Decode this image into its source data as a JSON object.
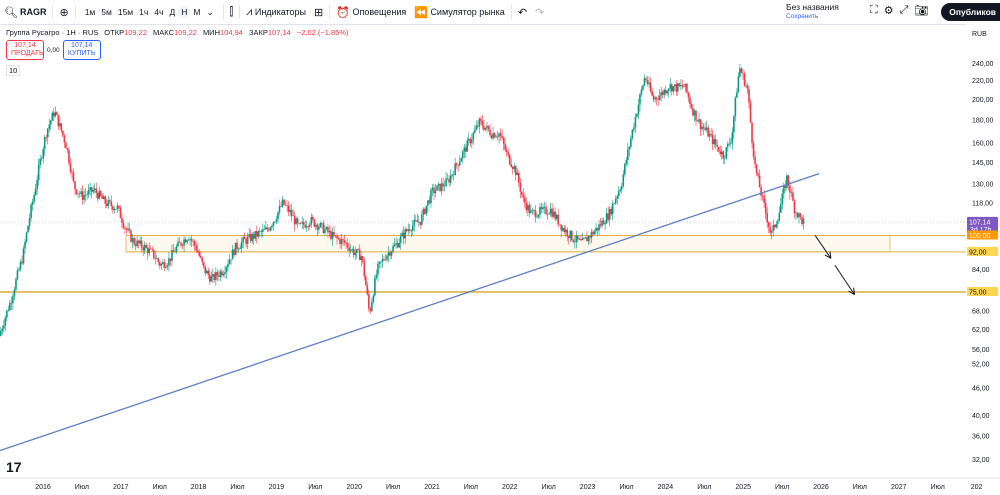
{
  "toolbar": {
    "symbol": "RAGR",
    "intervals": [
      "1м",
      "5м",
      "15м",
      "1ч",
      "4ч",
      "Д",
      "Н",
      "М"
    ],
    "active_interval": "Н",
    "indicators_label": "Индикаторы",
    "alerts_label": "Оповещения",
    "replay_label": "Симулятор рынка",
    "layout_name": "Без названия",
    "layout_status": "Сохранить",
    "publish_label": "Опубликов"
  },
  "legend": {
    "title": "Группа Русагро · 1Н · RUS",
    "open_label": "ОТКР",
    "open": "109,22",
    "high_label": "МАКС",
    "high": "109,22",
    "low_label": "МИН",
    "low": "104,94",
    "close_label": "ЗАКР",
    "close": "107,14",
    "change": "−2,02 (−1,85%)"
  },
  "trade": {
    "sell_price": "107,14",
    "sell_label": "ПРОДАТЬ",
    "spread": "0,00",
    "buy_price": "107,14",
    "buy_label": "КУПИТЬ"
  },
  "volume_label": "10",
  "colors": {
    "up": "#089981",
    "down": "#f23645",
    "trend": "#5b7fc7",
    "level": "#e0b34a"
  },
  "chart_data": {
    "type": "candlestick",
    "currency": "RUB",
    "y_scale": "log",
    "ylim": [
      30,
      265
    ],
    "y_ticks": [
      32,
      36,
      40,
      46,
      52,
      56,
      62,
      68,
      76,
      84,
      92,
      100,
      108,
      118,
      130,
      145,
      160,
      180,
      200,
      220,
      240
    ],
    "y_tick_labels": [
      "32,00",
      "36,00",
      "40,00",
      "46,00",
      "52,00",
      "56,00",
      "62,00",
      "68,00",
      "76,00",
      "84,00",
      "92,00",
      "100,00",
      "108,00",
      "118,00",
      "130,00",
      "145,00",
      "160,00",
      "180,00",
      "200,00",
      "220,00",
      "240,00"
    ],
    "x_labels": [
      "2016",
      "Июл",
      "2017",
      "Июл",
      "2018",
      "Июл",
      "2019",
      "Июл",
      "2020",
      "Июл",
      "2021",
      "Июл",
      "2022",
      "Июл",
      "2023",
      "Июл",
      "2024",
      "Июл",
      "2025",
      "Июл",
      "2026",
      "Июл",
      "2027",
      "Июл",
      "202"
    ],
    "price_path": [
      [
        2015.5,
        60
      ],
      [
        2015.65,
        72
      ],
      [
        2015.8,
        90
      ],
      [
        2015.95,
        125
      ],
      [
        2016.1,
        170
      ],
      [
        2016.2,
        188
      ],
      [
        2016.35,
        158
      ],
      [
        2016.45,
        128
      ],
      [
        2016.55,
        122
      ],
      [
        2016.7,
        126
      ],
      [
        2016.85,
        118
      ],
      [
        2017.0,
        115
      ],
      [
        2017.1,
        104
      ],
      [
        2017.2,
        97
      ],
      [
        2017.35,
        94
      ],
      [
        2017.45,
        91
      ],
      [
        2017.55,
        86
      ],
      [
        2017.65,
        88
      ],
      [
        2017.75,
        94
      ],
      [
        2017.9,
        100
      ],
      [
        2018.0,
        94
      ],
      [
        2018.1,
        84
      ],
      [
        2018.2,
        80
      ],
      [
        2018.35,
        84
      ],
      [
        2018.5,
        94
      ],
      [
        2018.6,
        97
      ],
      [
        2018.75,
        100
      ],
      [
        2018.9,
        103
      ],
      [
        2019.0,
        109
      ],
      [
        2019.1,
        118
      ],
      [
        2019.2,
        112
      ],
      [
        2019.3,
        104
      ],
      [
        2019.45,
        108
      ],
      [
        2019.6,
        104
      ],
      [
        2019.75,
        99
      ],
      [
        2019.9,
        96
      ],
      [
        2020.0,
        92
      ],
      [
        2020.1,
        90
      ],
      [
        2020.2,
        67
      ],
      [
        2020.3,
        84
      ],
      [
        2020.4,
        90
      ],
      [
        2020.55,
        96
      ],
      [
        2020.7,
        104
      ],
      [
        2020.85,
        108
      ],
      [
        2021.0,
        125
      ],
      [
        2021.1,
        128
      ],
      [
        2021.2,
        132
      ],
      [
        2021.35,
        148
      ],
      [
        2021.5,
        165
      ],
      [
        2021.6,
        178
      ],
      [
        2021.75,
        168
      ],
      [
        2021.85,
        168
      ],
      [
        2021.95,
        150
      ],
      [
        2022.05,
        140
      ],
      [
        2022.15,
        120
      ],
      [
        2022.25,
        112
      ],
      [
        2022.4,
        113
      ],
      [
        2022.5,
        114
      ],
      [
        2022.65,
        104
      ],
      [
        2022.8,
        98
      ],
      [
        2022.9,
        96
      ],
      [
        2023.0,
        100
      ],
      [
        2023.1,
        104
      ],
      [
        2023.25,
        112
      ],
      [
        2023.4,
        130
      ],
      [
        2023.5,
        158
      ],
      [
        2023.6,
        190
      ],
      [
        2023.7,
        225
      ],
      [
        2023.8,
        200
      ],
      [
        2023.9,
        205
      ],
      [
        2024.0,
        214
      ],
      [
        2024.1,
        212
      ],
      [
        2024.2,
        214
      ],
      [
        2024.3,
        190
      ],
      [
        2024.4,
        176
      ],
      [
        2024.5,
        168
      ],
      [
        2024.6,
        158
      ],
      [
        2024.7,
        150
      ],
      [
        2024.8,
        165
      ],
      [
        2024.9,
        235
      ],
      [
        2025.0,
        210
      ],
      [
        2025.05,
        168
      ],
      [
        2025.1,
        140
      ],
      [
        2025.2,
        118
      ],
      [
        2025.3,
        100
      ],
      [
        2025.4,
        112
      ],
      [
        2025.5,
        134
      ],
      [
        2025.6,
        114
      ],
      [
        2025.7,
        107.14
      ]
    ],
    "price_labels": [
      {
        "value": 107.14,
        "text": "107,14",
        "sub": "3d 17h",
        "color": "#7e57c2"
      },
      {
        "value": 100,
        "text": "100,00",
        "color": "#ff9800"
      },
      {
        "value": 92,
        "text": "92,00",
        "color": "#ffd54f"
      },
      {
        "value": 75,
        "text": "75,00",
        "color": "#ffd54f"
      }
    ],
    "levels": [
      100,
      92,
      75
    ],
    "trendline": [
      [
        2015.4,
        33
      ],
      [
        2025.9,
        137
      ]
    ],
    "support_box": {
      "x0": 2017.1,
      "x1": 2026.8,
      "y0": 92,
      "y1": 100
    },
    "arrows": [
      [
        [
          2025.85,
          100
        ],
        [
          2026.05,
          89
        ]
      ],
      [
        [
          2026.1,
          86
        ],
        [
          2026.35,
          74
        ]
      ]
    ]
  }
}
